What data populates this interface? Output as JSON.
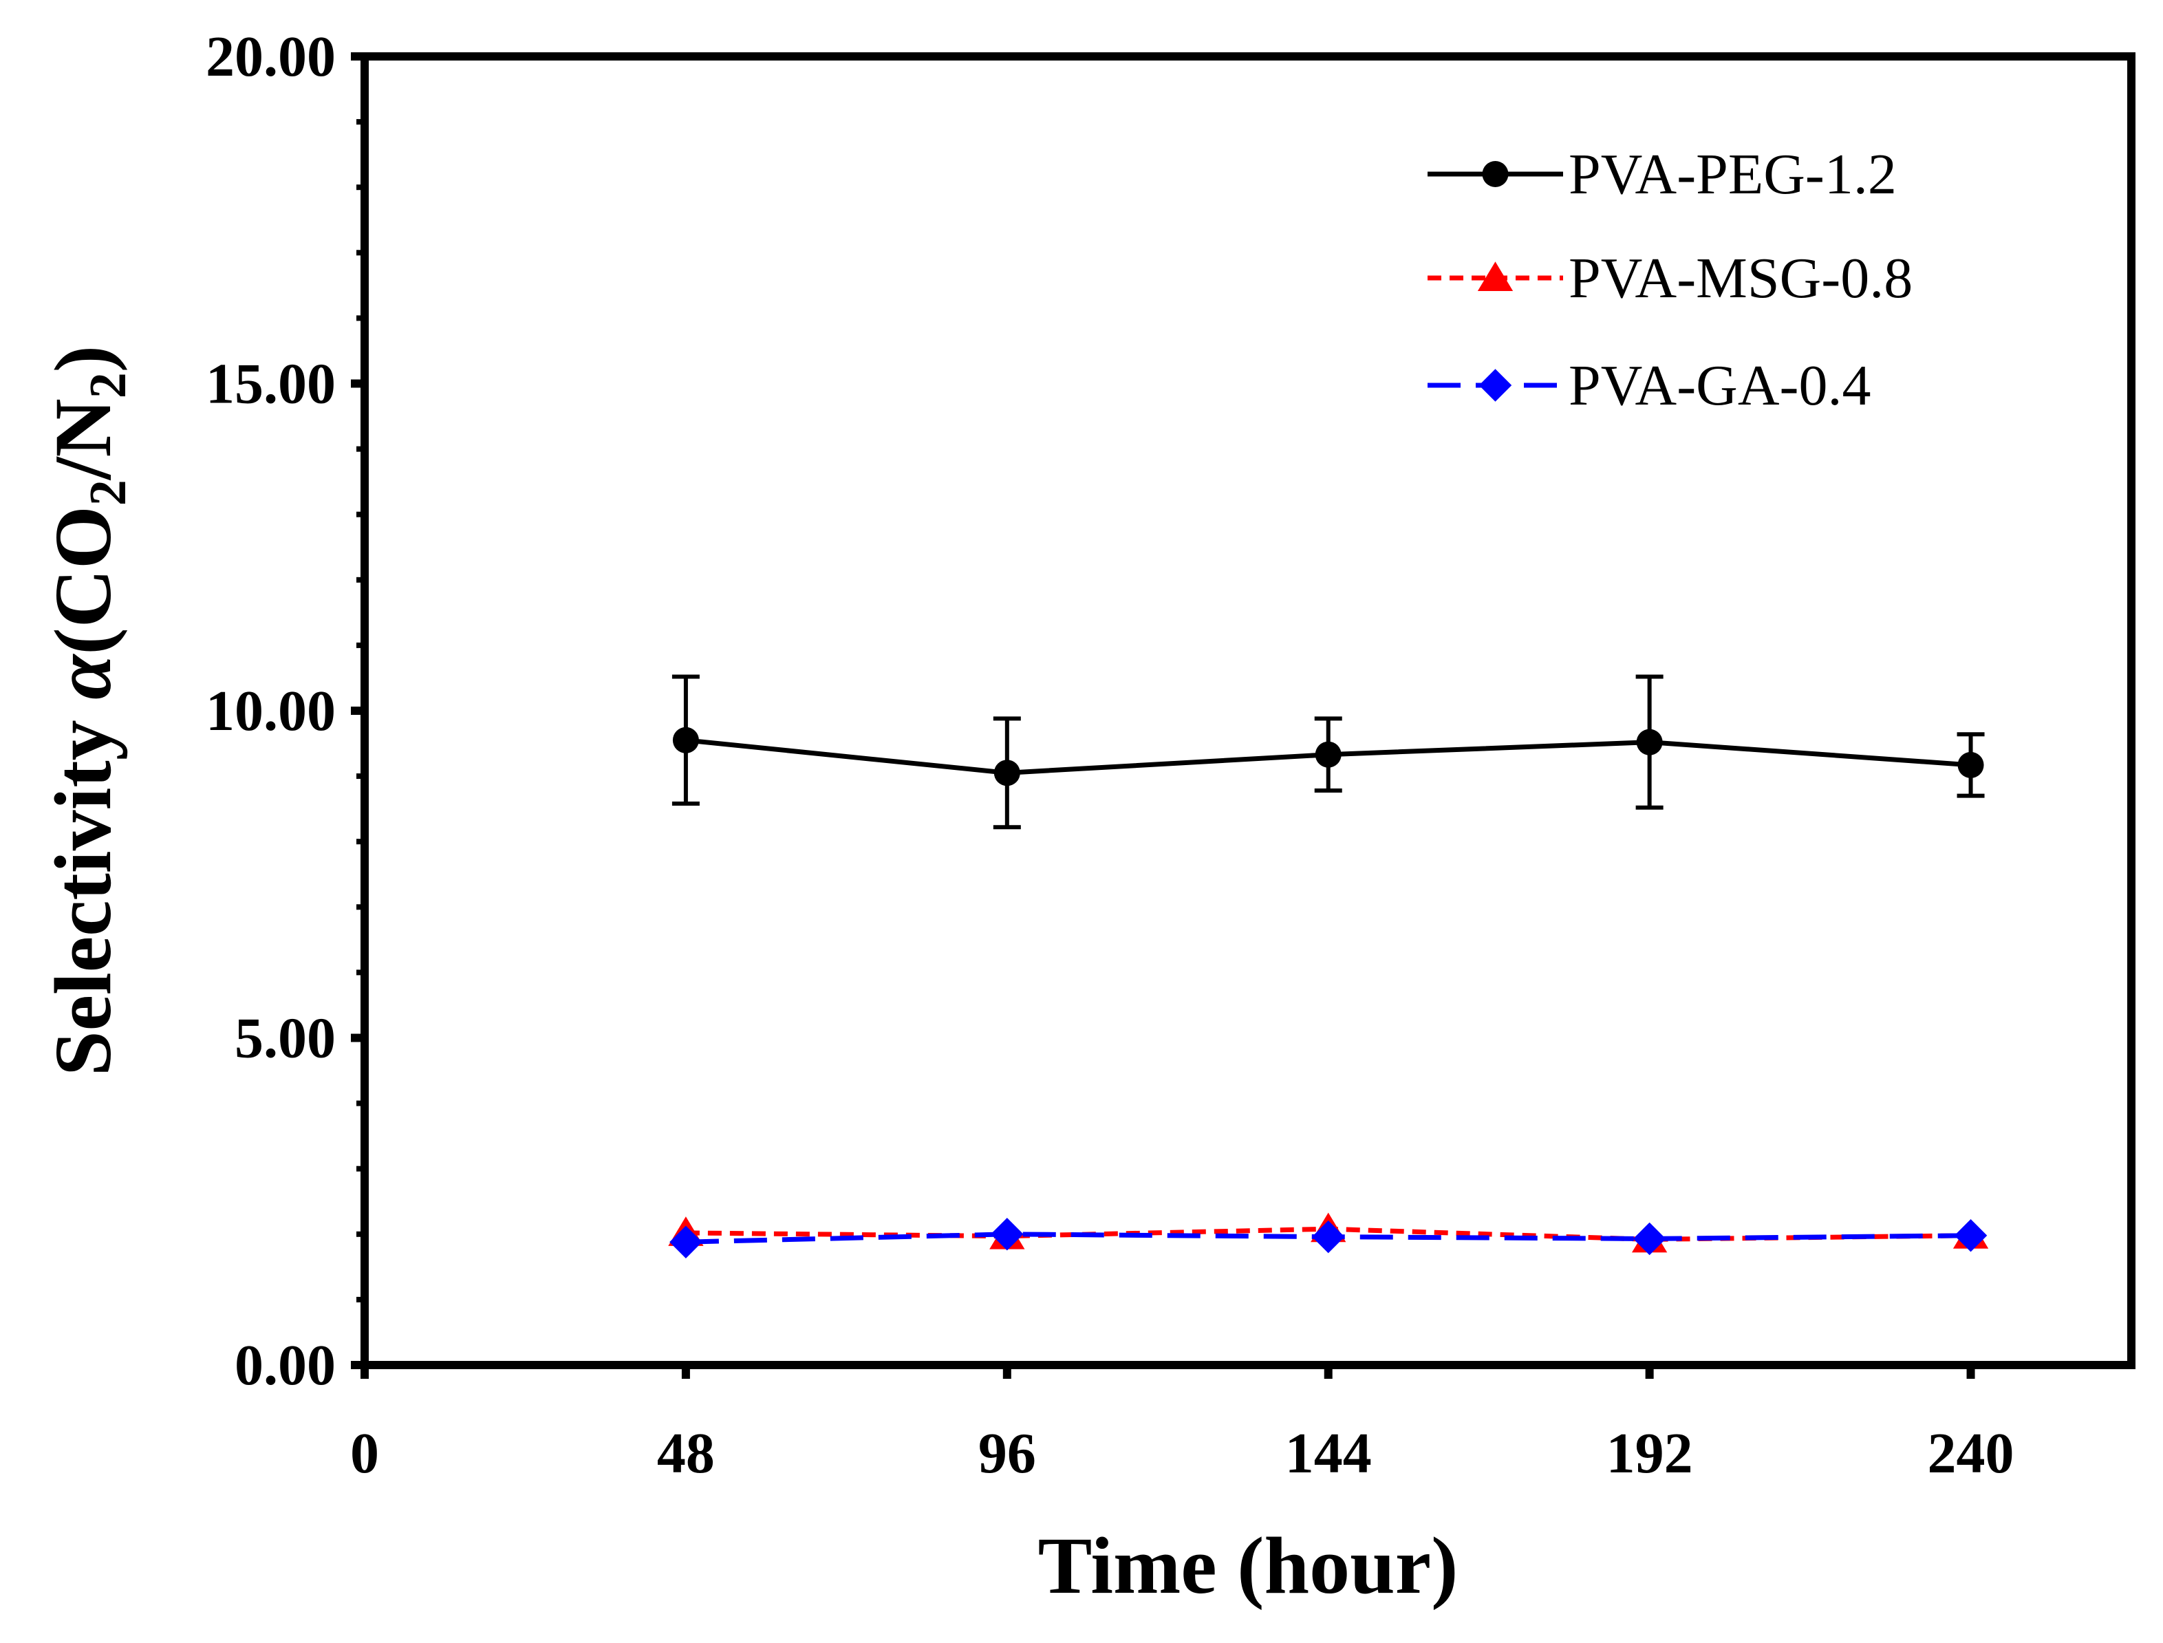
{
  "chart_data": {
    "type": "line",
    "title": "",
    "xlabel": "Time (hour)",
    "ylabel": {
      "prefix": "Selectivity ",
      "alpha": "α",
      "open": "(CO",
      "sub1": "2",
      "mid": "/N",
      "sub2": "2",
      "close": ")"
    },
    "xlim": [
      0,
      264
    ],
    "ylim": [
      0,
      20
    ],
    "x_ticks": [
      0,
      48,
      96,
      144,
      192,
      240
    ],
    "x_tick_labels": [
      "0",
      "48",
      "96",
      "144",
      "192",
      "240"
    ],
    "y_ticks": [
      0,
      5,
      10,
      15,
      20
    ],
    "y_tick_labels": [
      "0.00",
      "5.00",
      "10.00",
      "15.00",
      "20.00"
    ],
    "y_minor_step": 1,
    "grid": false,
    "legend_position": "top-right",
    "x": [
      48,
      96,
      144,
      192,
      240
    ],
    "series": [
      {
        "name": "PVA-PEG-1.2",
        "values": [
          9.55,
          9.05,
          9.33,
          9.52,
          9.17
        ],
        "errors": [
          0.97,
          0.83,
          0.55,
          1.0,
          0.47
        ],
        "color": "#000000",
        "marker": "circle",
        "line_style": "solid"
      },
      {
        "name": "PVA-MSG-0.8",
        "values": [
          2.02,
          1.97,
          2.08,
          1.92,
          1.98
        ],
        "color": "#ff0000",
        "marker": "triangle",
        "line_style": "dotted"
      },
      {
        "name": "PVA-GA-0.4",
        "values": [
          1.88,
          2.0,
          1.96,
          1.93,
          1.98
        ],
        "color": "#0000ff",
        "marker": "diamond",
        "line_style": "dashed"
      }
    ]
  }
}
